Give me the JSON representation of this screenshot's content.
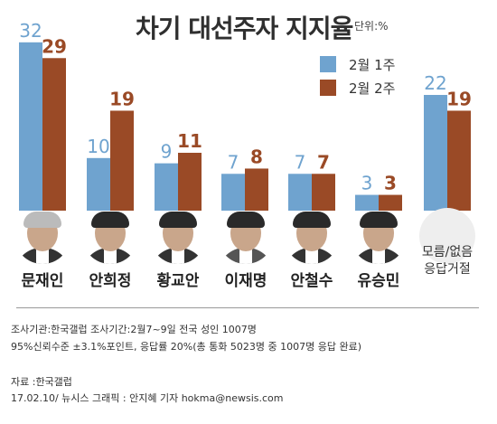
{
  "chart_data": {
    "type": "bar",
    "title": "차기 대선주자 지지율",
    "unit": "단위:%",
    "categories": [
      "문재인",
      "안희정",
      "황교안",
      "이재명",
      "안철수",
      "유승민",
      "모름/없음 응답거절"
    ],
    "series": [
      {
        "name": "2월 1주",
        "values": [
          32,
          10,
          9,
          7,
          7,
          3,
          22
        ],
        "color": "#6fa3cf"
      },
      {
        "name": "2월 2주",
        "values": [
          29,
          19,
          11,
          8,
          7,
          3,
          19
        ],
        "color": "#9a4a26"
      }
    ],
    "ylim": [
      0,
      33
    ],
    "legend_position": "top-right",
    "grid": false
  },
  "no_answer": {
    "line1": "모름/없음",
    "line2": "응답거절"
  },
  "footer": {
    "line1": "조사기관:한국갤럽 조사기간:2월7~9일 전국 성인 1007명",
    "line2": "95%신뢰수준 ±3.1%포인트, 응답률 20%(총 통화 5023명 중 1007명 응답 완료)",
    "line3": "자료 :한국갤럽",
    "line4": "17.02.10/ 뉴시스 그래픽 : 안지혜 기자 hokma@newsis.com"
  }
}
